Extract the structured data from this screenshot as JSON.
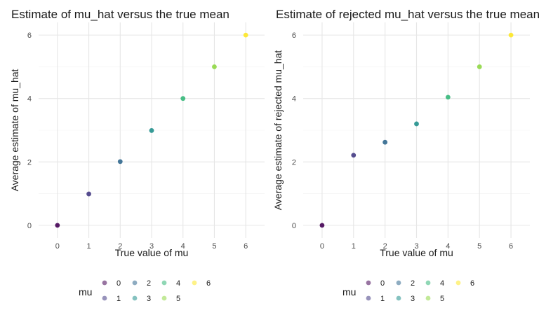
{
  "chart_data": [
    {
      "type": "scatter",
      "title": "Estimate of mu_hat versus the true mean",
      "xlabel": "True value of mu",
      "ylabel": "Average estimate of mu_hat",
      "xlim": [
        -0.6,
        6.6
      ],
      "ylim": [
        -0.4,
        6.4
      ],
      "xticks": [
        0,
        1,
        2,
        3,
        4,
        5,
        6
      ],
      "yticks": [
        0,
        2,
        4,
        6
      ],
      "grid": true,
      "points": [
        {
          "x": 0,
          "y": 0.0,
          "mu": "0"
        },
        {
          "x": 1,
          "y": 0.99,
          "mu": "1"
        },
        {
          "x": 2,
          "y": 2.01,
          "mu": "2"
        },
        {
          "x": 3,
          "y": 2.99,
          "mu": "3"
        },
        {
          "x": 4,
          "y": 4.0,
          "mu": "4"
        },
        {
          "x": 5,
          "y": 5.0,
          "mu": "5"
        },
        {
          "x": 6,
          "y": 6.0,
          "mu": "6"
        }
      ]
    },
    {
      "type": "scatter",
      "title": "Estimate of rejected mu_hat versus the true mean",
      "xlabel": "True value of mu",
      "ylabel": "Average estimate of rejected mu_hat",
      "xlim": [
        -0.6,
        6.6
      ],
      "ylim": [
        -0.4,
        6.4
      ],
      "xticks": [
        0,
        1,
        2,
        3,
        4,
        5,
        6
      ],
      "yticks": [
        0,
        2,
        4,
        6
      ],
      "grid": true,
      "points": [
        {
          "x": 0,
          "y": 0.0,
          "mu": "0"
        },
        {
          "x": 1,
          "y": 2.21,
          "mu": "1"
        },
        {
          "x": 2,
          "y": 2.62,
          "mu": "2"
        },
        {
          "x": 3,
          "y": 3.2,
          "mu": "3"
        },
        {
          "x": 4,
          "y": 4.04,
          "mu": "4"
        },
        {
          "x": 5,
          "y": 5.0,
          "mu": "5"
        },
        {
          "x": 6,
          "y": 6.0,
          "mu": "6"
        }
      ]
    }
  ],
  "legend": {
    "title": "mu",
    "placement": "bottom",
    "entries": [
      {
        "label": "0",
        "color": "#440154"
      },
      {
        "label": "1",
        "color": "#443A83"
      },
      {
        "label": "2",
        "color": "#31688E"
      },
      {
        "label": "3",
        "color": "#21908C"
      },
      {
        "label": "4",
        "color": "#35B779"
      },
      {
        "label": "5",
        "color": "#8FD744"
      },
      {
        "label": "6",
        "color": "#FDE725"
      }
    ]
  }
}
